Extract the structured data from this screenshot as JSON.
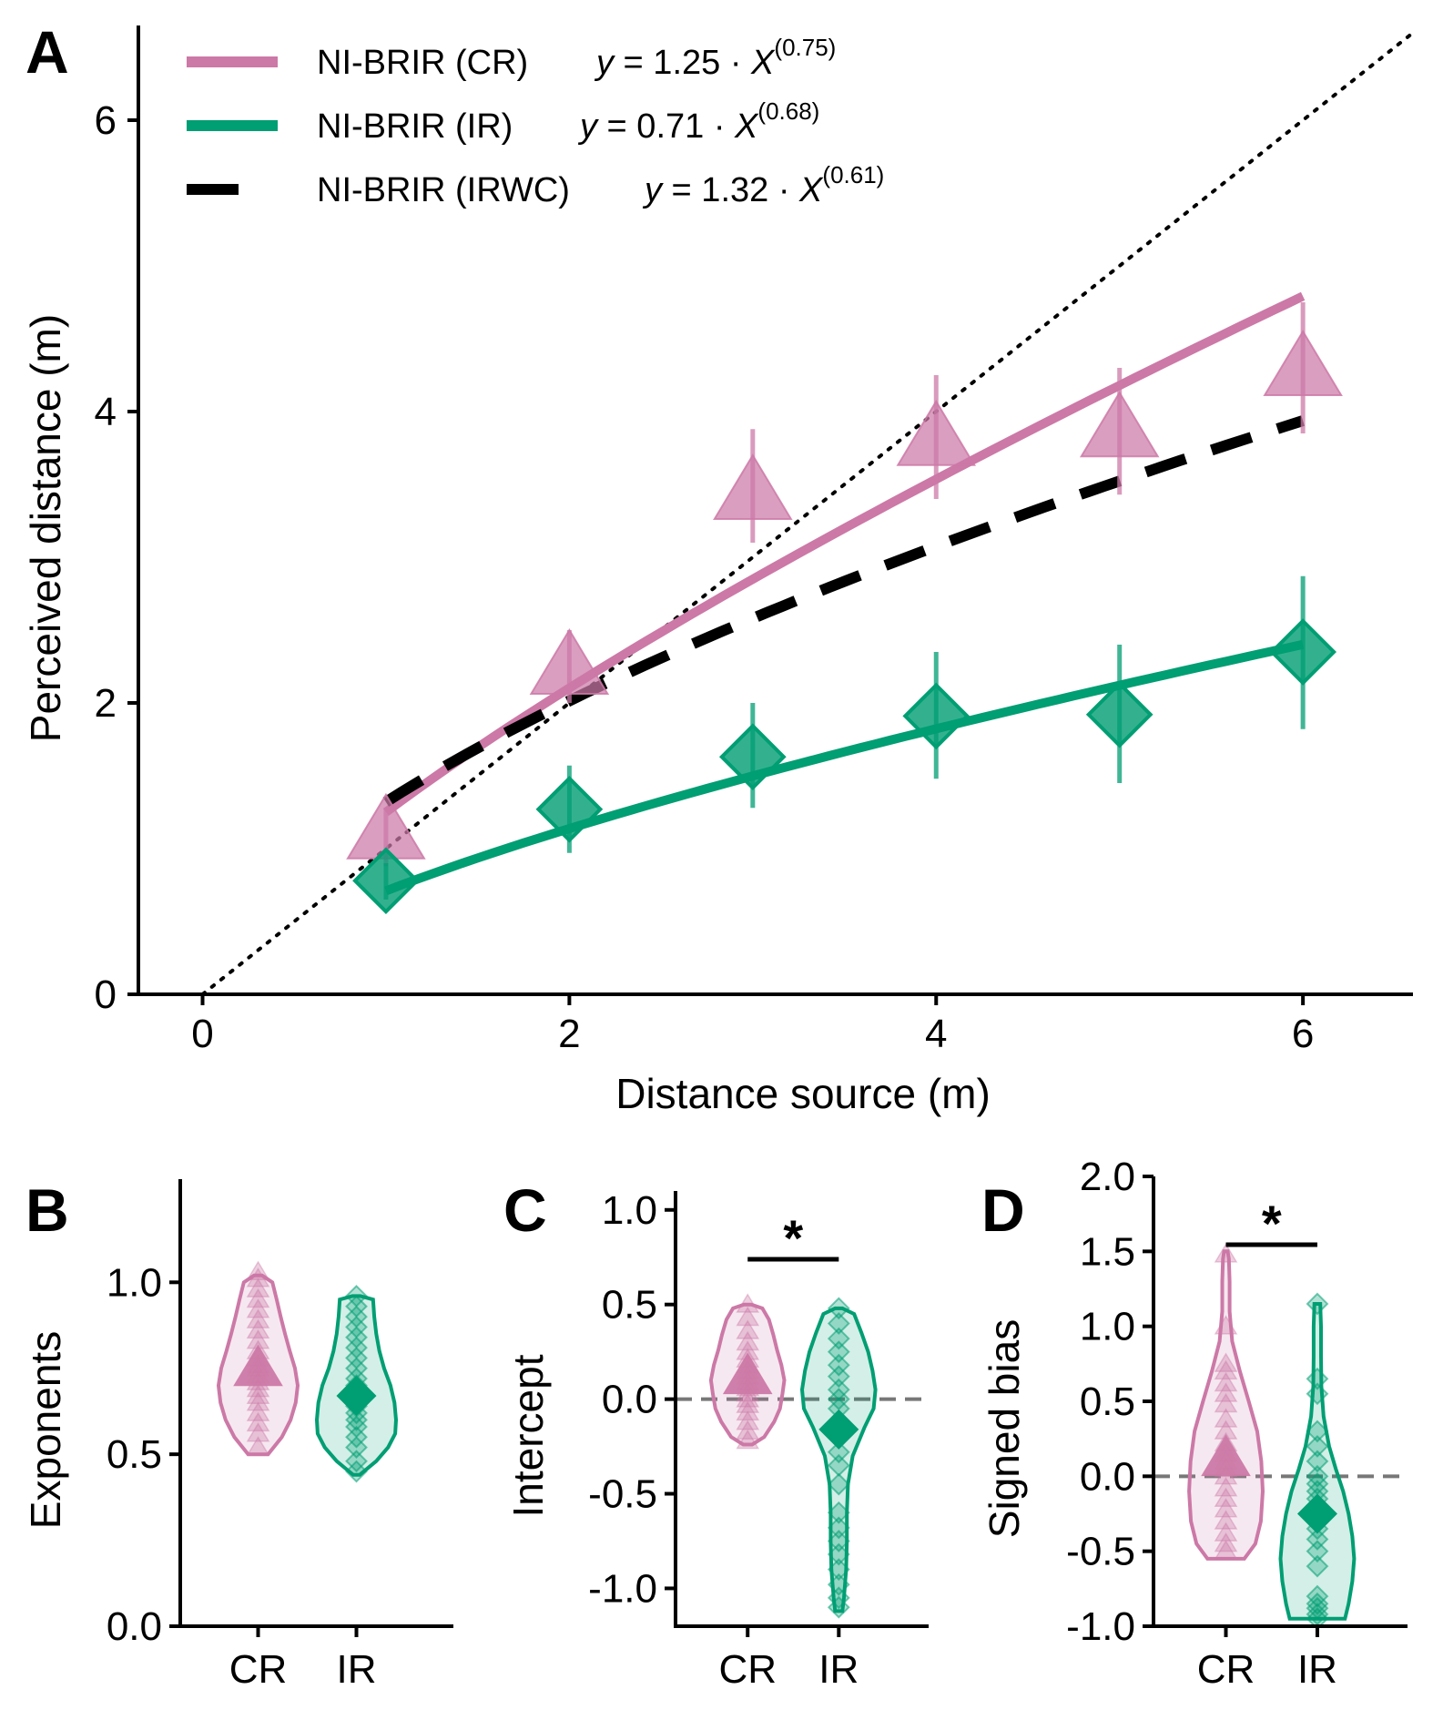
{
  "colors": {
    "cr": "#cc79a7",
    "ir": "#009e73",
    "irwc": "#000000"
  },
  "chart_data": [
    {
      "panel": "A",
      "type": "scatter",
      "xlabel": "Distance source (m)",
      "ylabel": "Perceived distance (m)",
      "xlim": [
        -0.35,
        6.6
      ],
      "ylim": [
        0,
        6.65
      ],
      "xticks": [
        "0",
        "2",
        "4",
        "6"
      ],
      "yticks": [
        "0",
        "2",
        "4",
        "6"
      ],
      "legend_position": "top-left",
      "identity_line": true,
      "series": [
        {
          "name": "NI-BRIR (CR)",
          "formula": {
            "lhs": "y",
            "coef": "= 1.25 · ",
            "var": "X",
            "exp": "(0.75)"
          },
          "color": "#cc79a7",
          "marker": "triangle",
          "x": [
            1,
            2,
            3,
            4,
            5,
            6
          ],
          "y": [
            1.12,
            2.25,
            3.45,
            3.82,
            3.88,
            4.3
          ],
          "err_low": [
            0.88,
            2.0,
            3.1,
            3.4,
            3.43,
            3.85
          ],
          "err_high": [
            1.28,
            2.5,
            3.88,
            4.25,
            4.3,
            4.75
          ],
          "fit": {
            "coef": 1.25,
            "exponent": 0.75,
            "range": [
              1,
              6
            ]
          }
        },
        {
          "name": "NI-BRIR (IR)",
          "formula": {
            "lhs": "y",
            "coef": "= 0.71 · ",
            "var": "X",
            "exp": "(0.68)"
          },
          "color": "#009e73",
          "marker": "diamond",
          "x": [
            1,
            2,
            3,
            4,
            5,
            6
          ],
          "y": [
            0.78,
            1.27,
            1.63,
            1.91,
            1.92,
            2.35
          ],
          "err_low": [
            0.65,
            0.97,
            1.28,
            1.48,
            1.45,
            1.82
          ],
          "err_high": [
            0.9,
            1.57,
            2.0,
            2.35,
            2.4,
            2.87
          ],
          "fit": {
            "coef": 0.71,
            "exponent": 0.68,
            "range": [
              1,
              6
            ]
          }
        },
        {
          "name": "NI-BRIR (IRWC)",
          "formula": {
            "lhs": "y",
            "coef": "= 1.32 · ",
            "var": "X",
            "exp": "(0.61)"
          },
          "color": "#000000",
          "marker": "none",
          "fit": {
            "coef": 1.32,
            "exponent": 0.61,
            "range": [
              1,
              6
            ]
          }
        }
      ]
    },
    {
      "panel": "B",
      "type": "violin",
      "ylabel": "Exponents",
      "ylim": [
        0,
        1.3
      ],
      "yticks": [
        "0.0",
        "0.5",
        "1.0"
      ],
      "categories": [
        "CR",
        "IR"
      ],
      "reference_line": null,
      "significance": null,
      "groups": [
        {
          "name": "CR",
          "color": "#cc79a7",
          "marker": "triangle",
          "mean": 0.75,
          "points": [
            0.52,
            0.56,
            0.59,
            0.62,
            0.65,
            0.67,
            0.69,
            0.71,
            0.73,
            0.75,
            0.76,
            0.78,
            0.8,
            0.83,
            0.86,
            0.89,
            0.92,
            0.95,
            0.98,
            1.01,
            1.03
          ],
          "violin": [
            [
              0.5,
              0.25
            ],
            [
              0.55,
              0.6
            ],
            [
              0.6,
              0.82
            ],
            [
              0.65,
              0.95
            ],
            [
              0.7,
              1.0
            ],
            [
              0.75,
              0.93
            ],
            [
              0.8,
              0.8
            ],
            [
              0.85,
              0.68
            ],
            [
              0.9,
              0.57
            ],
            [
              0.95,
              0.47
            ],
            [
              1.0,
              0.36
            ],
            [
              1.02,
              0.1
            ]
          ]
        },
        {
          "name": "IR",
          "color": "#009e73",
          "marker": "diamond",
          "mean": 0.67,
          "points": [
            0.45,
            0.48,
            0.52,
            0.55,
            0.58,
            0.6,
            0.62,
            0.64,
            0.66,
            0.68,
            0.7,
            0.72,
            0.75,
            0.78,
            0.81,
            0.84,
            0.87,
            0.9,
            0.93,
            0.96
          ],
          "violin": [
            [
              0.44,
              0.08
            ],
            [
              0.48,
              0.5
            ],
            [
              0.52,
              0.8
            ],
            [
              0.56,
              0.98
            ],
            [
              0.6,
              1.0
            ],
            [
              0.65,
              0.96
            ],
            [
              0.7,
              0.86
            ],
            [
              0.75,
              0.7
            ],
            [
              0.8,
              0.58
            ],
            [
              0.85,
              0.5
            ],
            [
              0.9,
              0.45
            ],
            [
              0.95,
              0.42
            ],
            [
              0.96,
              0.1
            ]
          ]
        }
      ]
    },
    {
      "panel": "C",
      "type": "violin",
      "ylabel": "Intercept",
      "ylim": [
        -1.2,
        1.1
      ],
      "yticks": [
        "-1.0",
        "-0.5",
        "0.0",
        "0.5",
        "1.0"
      ],
      "categories": [
        "CR",
        "IR"
      ],
      "reference_line": 0,
      "significance": "*",
      "groups": [
        {
          "name": "CR",
          "color": "#cc79a7",
          "marker": "triangle",
          "mean": 0.12,
          "points": [
            -0.22,
            -0.17,
            -0.12,
            -0.07,
            -0.03,
            0.0,
            0.03,
            0.06,
            0.09,
            0.12,
            0.15,
            0.18,
            0.21,
            0.25,
            0.3,
            0.36,
            0.43,
            0.5
          ],
          "violin": [
            [
              -0.24,
              0.12
            ],
            [
              -0.2,
              0.45
            ],
            [
              -0.12,
              0.72
            ],
            [
              -0.05,
              0.88
            ],
            [
              0.03,
              0.95
            ],
            [
              0.1,
              1.0
            ],
            [
              0.18,
              0.92
            ],
            [
              0.26,
              0.8
            ],
            [
              0.34,
              0.7
            ],
            [
              0.42,
              0.58
            ],
            [
              0.48,
              0.4
            ],
            [
              0.5,
              0.1
            ]
          ]
        },
        {
          "name": "IR",
          "color": "#009e73",
          "marker": "diamond",
          "mean": -0.16,
          "points": [
            -1.1,
            -1.05,
            -0.98,
            -0.9,
            -0.82,
            -0.75,
            -0.68,
            -0.6,
            -0.45,
            -0.35,
            -0.28,
            -0.2,
            -0.12,
            -0.05,
            0.0,
            0.05,
            0.12,
            0.18,
            0.25,
            0.32,
            0.4,
            0.48
          ],
          "violin": [
            [
              -1.12,
              0.1
            ],
            [
              -1.05,
              0.14
            ],
            [
              -0.9,
              0.2
            ],
            [
              -0.75,
              0.22
            ],
            [
              -0.6,
              0.22
            ],
            [
              -0.45,
              0.25
            ],
            [
              -0.3,
              0.38
            ],
            [
              -0.15,
              0.7
            ],
            [
              -0.05,
              0.95
            ],
            [
              0.05,
              1.0
            ],
            [
              0.15,
              0.92
            ],
            [
              0.25,
              0.8
            ],
            [
              0.35,
              0.62
            ],
            [
              0.45,
              0.42
            ],
            [
              0.48,
              0.1
            ]
          ]
        }
      ]
    },
    {
      "panel": "D",
      "type": "violin",
      "ylabel": "Signed bias",
      "ylim": [
        -1.0,
        2.0
      ],
      "yticks": [
        "-1.0",
        "-0.5",
        "0.0",
        "0.5",
        "1.0",
        "1.5",
        "2.0"
      ],
      "categories": [
        "CR",
        "IR"
      ],
      "reference_line": 0,
      "significance": "*",
      "groups": [
        {
          "name": "CR",
          "color": "#cc79a7",
          "marker": "triangle",
          "mean": 0.12,
          "points": [
            -0.5,
            -0.45,
            -0.38,
            -0.3,
            -0.22,
            -0.15,
            -0.08,
            0.0,
            0.05,
            0.1,
            0.15,
            0.22,
            0.3,
            0.38,
            0.48,
            0.55,
            0.62,
            0.7,
            0.75,
            1.0,
            1.48
          ],
          "violin": [
            [
              -0.55,
              0.5
            ],
            [
              -0.45,
              0.8
            ],
            [
              -0.3,
              0.95
            ],
            [
              -0.1,
              1.0
            ],
            [
              0.1,
              0.96
            ],
            [
              0.3,
              0.85
            ],
            [
              0.5,
              0.62
            ],
            [
              0.7,
              0.38
            ],
            [
              0.9,
              0.17
            ],
            [
              1.1,
              0.1
            ],
            [
              1.3,
              0.1
            ],
            [
              1.45,
              0.08
            ],
            [
              1.5,
              0.05
            ]
          ]
        },
        {
          "name": "IR",
          "color": "#009e73",
          "marker": "diamond",
          "mean": -0.25,
          "points": [
            -0.95,
            -0.92,
            -0.88,
            -0.85,
            -0.8,
            -0.6,
            -0.5,
            -0.42,
            -0.35,
            -0.3,
            -0.25,
            -0.2,
            -0.15,
            -0.1,
            -0.05,
            0.0,
            0.1,
            0.2,
            0.3,
            0.55,
            0.65,
            1.15
          ],
          "violin": [
            [
              -0.95,
              0.75
            ],
            [
              -0.85,
              0.85
            ],
            [
              -0.7,
              0.95
            ],
            [
              -0.55,
              1.0
            ],
            [
              -0.4,
              0.95
            ],
            [
              -0.25,
              0.85
            ],
            [
              -0.1,
              0.7
            ],
            [
              0.05,
              0.5
            ],
            [
              0.2,
              0.32
            ],
            [
              0.4,
              0.17
            ],
            [
              0.6,
              0.11
            ],
            [
              0.8,
              0.1
            ],
            [
              1.0,
              0.1
            ],
            [
              1.15,
              0.08
            ]
          ]
        }
      ]
    }
  ]
}
